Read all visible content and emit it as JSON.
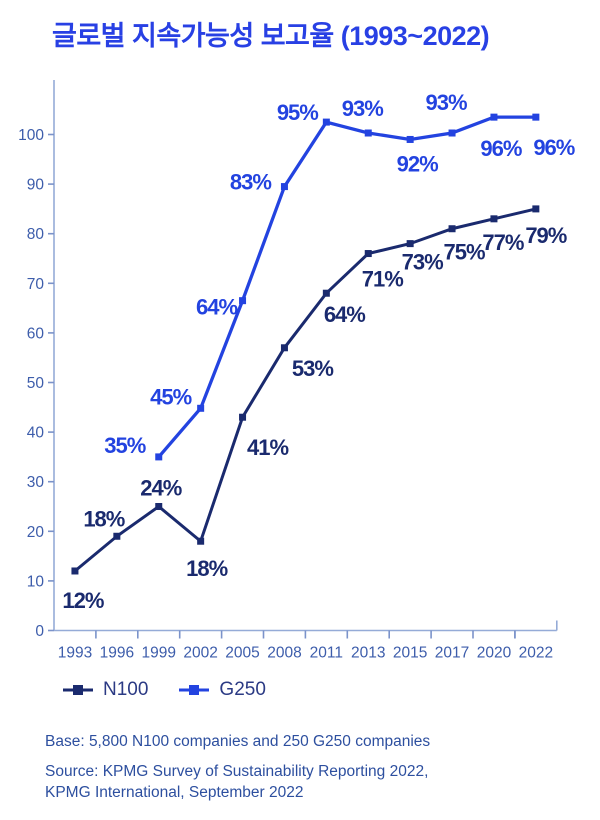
{
  "page": {
    "title": "글로벌 지속가능성 보고율 (1993~2022)",
    "footer": {
      "base": "Base: 5,800 N100 companies and 250 G250 companies",
      "source_line1": "Source: KPMG Survey of Sustainability Reporting 2022,",
      "source_line2": "KPMG International, September 2022"
    }
  },
  "colors": {
    "title": "#2840e4",
    "axis_text": "#3d5dab",
    "axis_line": "#95abd7",
    "tick": "#7b93ca",
    "legend_text": "#2b3a84",
    "footer_text": "#2d4f9f",
    "background": "#ffffff"
  },
  "chart_data": {
    "type": "line",
    "title": "글로벌 지속가능성 보고율 (1993~2022)",
    "categories": [
      "1993",
      "1996",
      "1999",
      "2002",
      "2005",
      "2008",
      "2011",
      "2013",
      "2015",
      "2017",
      "2020",
      "2022"
    ],
    "xlabel": "",
    "ylabel": "",
    "unit": "%",
    "ylim": [
      0,
      110
    ],
    "yticks": [
      0,
      10,
      20,
      30,
      40,
      50,
      60,
      70,
      80,
      90,
      100
    ],
    "grid": false,
    "legend_position": "bottom-left",
    "marker": "square",
    "series": [
      {
        "name": "N100",
        "color": "#1a2a6e",
        "values": [
          12,
          18,
          24,
          18,
          41,
          53,
          64,
          71,
          73,
          75,
          77,
          79
        ],
        "labels": [
          "12%",
          "18%",
          "24%",
          "18%",
          "41%",
          "53%",
          "64%",
          "71%",
          "73%",
          "75%",
          "77%",
          "79%"
        ],
        "plot_values": [
          12,
          19,
          25,
          18,
          43,
          57,
          68,
          76,
          78,
          81,
          83,
          85
        ],
        "label_offsets": [
          [
            8,
            30
          ],
          [
            -13,
            -17
          ],
          [
            2,
            -18
          ],
          [
            6,
            28
          ],
          [
            25,
            31
          ],
          [
            28,
            21
          ],
          [
            18,
            22
          ],
          [
            14,
            26
          ],
          [
            12,
            19
          ],
          [
            12,
            24
          ],
          [
            9,
            24
          ],
          [
            10,
            27
          ]
        ]
      },
      {
        "name": "G250",
        "color": "#2343e0",
        "values": [
          null,
          null,
          35,
          45,
          64,
          83,
          95,
          93,
          92,
          93,
          96,
          96
        ],
        "labels": [
          null,
          null,
          "35%",
          "45%",
          "64%",
          "83%",
          "95%",
          "93%",
          "92%",
          "93%",
          "96%",
          "96%"
        ],
        "plot_values": [
          null,
          null,
          35,
          44.8,
          66.5,
          89.5,
          102.5,
          100.3,
          99,
          100.3,
          103.5,
          103.5
        ],
        "label_offsets": [
          null,
          null,
          [
            -34,
            -11
          ],
          [
            -30,
            -11
          ],
          [
            -26,
            7
          ],
          [
            -34,
            -4
          ],
          [
            -29,
            -9
          ],
          [
            -6,
            -24
          ],
          [
            7,
            25
          ],
          [
            -6,
            -30
          ],
          [
            7,
            32
          ],
          [
            18,
            31
          ]
        ]
      }
    ]
  }
}
